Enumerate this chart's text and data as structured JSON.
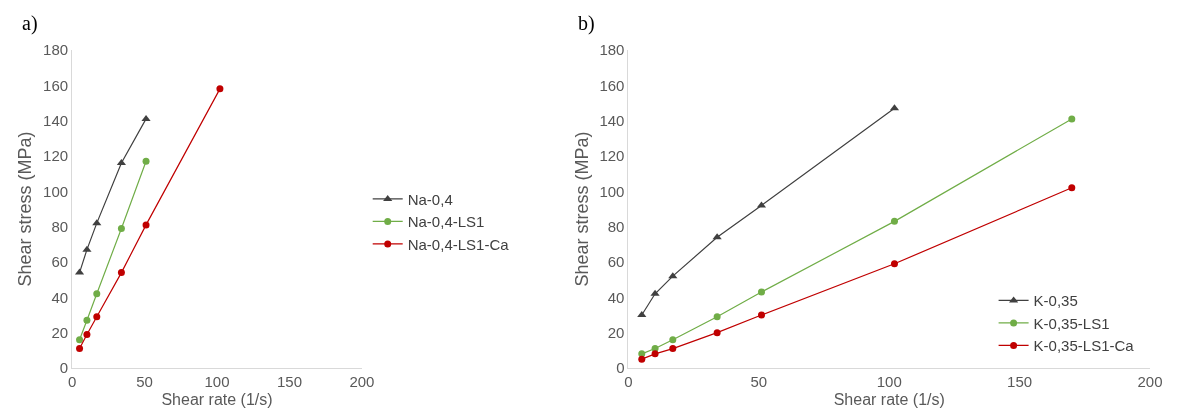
{
  "chart_data": [
    {
      "type": "line",
      "title": "a)",
      "xlabel": "Shear rate (1/s)",
      "ylabel": "Shear stress (MPa)",
      "xlim": [
        0,
        200
      ],
      "xticks": [
        0,
        50,
        100,
        150,
        200
      ],
      "ylim": [
        0,
        180
      ],
      "yticks": [
        0,
        20,
        40,
        60,
        80,
        100,
        120,
        140,
        160,
        180
      ],
      "legend": "right",
      "series": [
        {
          "name": "Na-0,4",
          "color": "#404040",
          "marker": "triangle",
          "x": [
            5.1,
            10.2,
            17,
            34,
            51
          ],
          "values": [
            54,
            67,
            82,
            116,
            141
          ]
        },
        {
          "name": "Na-0,4-LS1",
          "color": "#70ad47",
          "marker": "circle",
          "x": [
            5.1,
            10.2,
            17,
            34,
            51
          ],
          "values": [
            16,
            27,
            42,
            79,
            117
          ]
        },
        {
          "name": "Na-0,4-LS1-Ca",
          "color": "#c00000",
          "marker": "circle",
          "x": [
            5.1,
            10.2,
            17,
            34,
            51,
            102
          ],
          "values": [
            11,
            19,
            29,
            54,
            81,
            158
          ]
        }
      ]
    },
    {
      "type": "line",
      "title": "b)",
      "xlabel": "Shear rate (1/s)",
      "ylabel": "Shear stress (MPa)",
      "xlim": [
        0,
        200
      ],
      "xticks": [
        0,
        50,
        100,
        150,
        200
      ],
      "ylim": [
        0,
        180
      ],
      "yticks": [
        0,
        20,
        40,
        60,
        80,
        100,
        120,
        140,
        160,
        180
      ],
      "legend": "bottom right",
      "series": [
        {
          "name": "K-0,35",
          "color": "#404040",
          "marker": "triangle",
          "x": [
            5.1,
            10.2,
            17,
            34,
            51,
            102
          ],
          "values": [
            30,
            42,
            52,
            74,
            92,
            147
          ]
        },
        {
          "name": "K-0,35-LS1",
          "color": "#70ad47",
          "marker": "circle",
          "x": [
            5.1,
            10.2,
            17,
            34,
            51,
            102,
            170
          ],
          "values": [
            8,
            11,
            16,
            29,
            43,
            83,
            141
          ]
        },
        {
          "name": "K-0,35-LS1-Ca",
          "color": "#c00000",
          "marker": "circle",
          "x": [
            5.1,
            10.2,
            17,
            34,
            51,
            102,
            170
          ],
          "values": [
            5,
            8,
            11,
            20,
            30,
            59,
            102
          ]
        }
      ]
    }
  ]
}
